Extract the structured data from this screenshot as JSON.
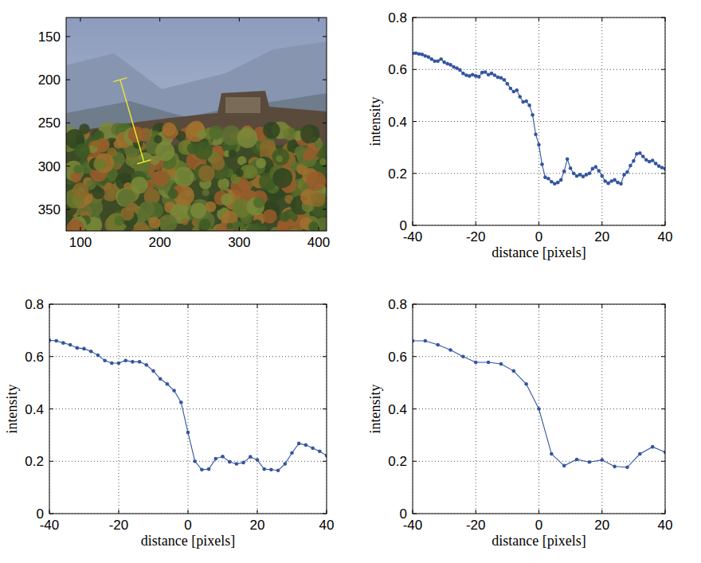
{
  "chart_data": [
    {
      "type": "image",
      "xlim": [
        82,
        410
      ],
      "ylim": [
        375,
        128
      ],
      "xticks": [
        100,
        200,
        300,
        400
      ],
      "yticks": [
        150,
        200,
        250,
        300,
        350
      ],
      "profile_line": {
        "x": [
          150,
          180
        ],
        "y": [
          200,
          295
        ]
      },
      "color": "#e6e632"
    },
    {
      "type": "line",
      "x": [
        -40,
        -39,
        -38,
        -37,
        -36,
        -35,
        -34,
        -33,
        -32,
        -31,
        -30,
        -29,
        -28,
        -27,
        -26,
        -25,
        -24,
        -23,
        -22,
        -21,
        -20,
        -19,
        -18,
        -17,
        -16,
        -15,
        -14,
        -13,
        -12,
        -11,
        -10,
        -9,
        -8,
        -7,
        -6,
        -5,
        -4,
        -3,
        -2,
        -1,
        0,
        1,
        2,
        3,
        4,
        5,
        6,
        7,
        8,
        9,
        10,
        11,
        12,
        13,
        14,
        15,
        16,
        17,
        18,
        19,
        20,
        21,
        22,
        23,
        24,
        25,
        26,
        27,
        28,
        29,
        30,
        31,
        32,
        33,
        34,
        35,
        36,
        37,
        38,
        39,
        40
      ],
      "values": [
        0.662,
        0.663,
        0.66,
        0.658,
        0.652,
        0.648,
        0.64,
        0.632,
        0.632,
        0.64,
        0.628,
        0.622,
        0.618,
        0.61,
        0.605,
        0.598,
        0.585,
        0.578,
        0.575,
        0.58,
        0.575,
        0.572,
        0.588,
        0.59,
        0.58,
        0.585,
        0.578,
        0.57,
        0.568,
        0.56,
        0.545,
        0.527,
        0.515,
        0.52,
        0.495,
        0.475,
        0.478,
        0.462,
        0.425,
        0.35,
        0.31,
        0.235,
        0.185,
        0.18,
        0.168,
        0.16,
        0.165,
        0.175,
        0.208,
        0.255,
        0.22,
        0.2,
        0.19,
        0.195,
        0.188,
        0.195,
        0.2,
        0.218,
        0.225,
        0.21,
        0.19,
        0.17,
        0.162,
        0.17,
        0.175,
        0.165,
        0.16,
        0.195,
        0.205,
        0.23,
        0.248,
        0.275,
        0.278,
        0.265,
        0.252,
        0.245,
        0.25,
        0.238,
        0.228,
        0.222,
        0.218
      ],
      "xlim": [
        -40,
        40
      ],
      "ylim": [
        0,
        0.8
      ],
      "xticks": [
        -40,
        -20,
        0,
        20,
        40
      ],
      "yticks": [
        0,
        0.2,
        0.4,
        0.6,
        0.8
      ],
      "xlabel": "distance [pixels]",
      "ylabel": "intensity",
      "grid": true,
      "color": "#3355a0",
      "marker": "dot",
      "line_style": "solid"
    },
    {
      "type": "line",
      "x": [
        -40,
        -38,
        -36,
        -34,
        -32,
        -30,
        -28,
        -26,
        -24,
        -22,
        -20,
        -18,
        -16,
        -14,
        -12,
        -10,
        -8,
        -6,
        -4,
        -2,
        0,
        2,
        4,
        6,
        8,
        10,
        12,
        14,
        16,
        18,
        20,
        22,
        24,
        26,
        28,
        30,
        32,
        34,
        36,
        38,
        40
      ],
      "values": [
        0.662,
        0.66,
        0.652,
        0.645,
        0.633,
        0.63,
        0.62,
        0.605,
        0.585,
        0.575,
        0.575,
        0.585,
        0.58,
        0.58,
        0.568,
        0.545,
        0.515,
        0.495,
        0.47,
        0.425,
        0.31,
        0.2,
        0.168,
        0.17,
        0.21,
        0.218,
        0.198,
        0.19,
        0.195,
        0.217,
        0.205,
        0.17,
        0.168,
        0.165,
        0.19,
        0.232,
        0.268,
        0.262,
        0.25,
        0.238,
        0.222
      ],
      "xlim": [
        -40,
        40
      ],
      "ylim": [
        0,
        0.8
      ],
      "xticks": [
        -40,
        -20,
        0,
        20,
        40
      ],
      "yticks": [
        0,
        0.2,
        0.4,
        0.6,
        0.8
      ],
      "xlabel": "distance [pixels]",
      "ylabel": "intensity",
      "grid": true,
      "color": "#3355a0",
      "marker": "dot",
      "line_style": "solid"
    },
    {
      "type": "line",
      "x": [
        -40,
        -36,
        -32,
        -28,
        -24,
        -20,
        -16,
        -12,
        -8,
        -4,
        0,
        4,
        8,
        12,
        16,
        20,
        24,
        28,
        32,
        36,
        40
      ],
      "values": [
        0.66,
        0.66,
        0.645,
        0.625,
        0.6,
        0.578,
        0.578,
        0.572,
        0.545,
        0.495,
        0.4,
        0.228,
        0.183,
        0.207,
        0.197,
        0.205,
        0.18,
        0.177,
        0.228,
        0.255,
        0.235
      ],
      "xlim": [
        -40,
        40
      ],
      "ylim": [
        0,
        0.8
      ],
      "xticks": [
        -40,
        -20,
        0,
        20,
        40
      ],
      "yticks": [
        0,
        0.2,
        0.4,
        0.6,
        0.8
      ],
      "xlabel": "distance [pixels]",
      "ylabel": "intensity",
      "grid": true,
      "color": "#3355a0",
      "marker": "dot",
      "line_style": "solid"
    }
  ]
}
